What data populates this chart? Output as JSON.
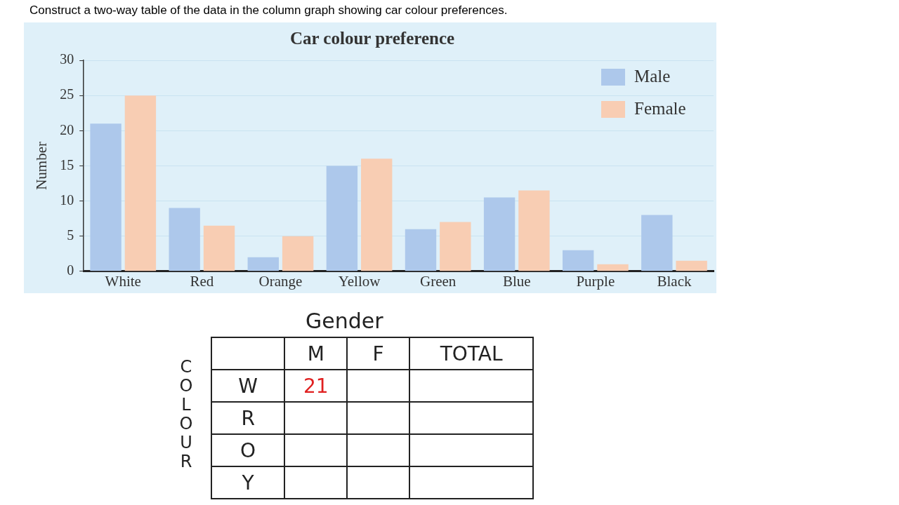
{
  "chart_data": {
    "type": "bar",
    "title": "Car colour preference",
    "ylabel": "Number",
    "categories": [
      "White",
      "Red",
      "Orange",
      "Yellow",
      "Green",
      "Blue",
      "Purple",
      "Black"
    ],
    "series": [
      {
        "name": "Male",
        "color": "#adc8eb",
        "values": [
          21,
          9,
          2,
          15,
          6,
          10.5,
          3,
          8
        ]
      },
      {
        "name": "Female",
        "color": "#f8cdb3",
        "values": [
          25,
          6.5,
          5,
          16,
          7,
          11.5,
          1,
          1.5
        ]
      }
    ],
    "ylim": [
      0,
      30
    ],
    "yticks": [
      0,
      5,
      10,
      15,
      20,
      25,
      30
    ],
    "grid": "y",
    "legend": "top right",
    "annotations": [
      "Construct a two-way table of the data in the column graph showing car colour preferences.",
      "Gender",
      "M",
      "F",
      "TOTAL",
      "COLOUR",
      "W",
      "R",
      "O",
      "Y",
      "21"
    ]
  }
}
